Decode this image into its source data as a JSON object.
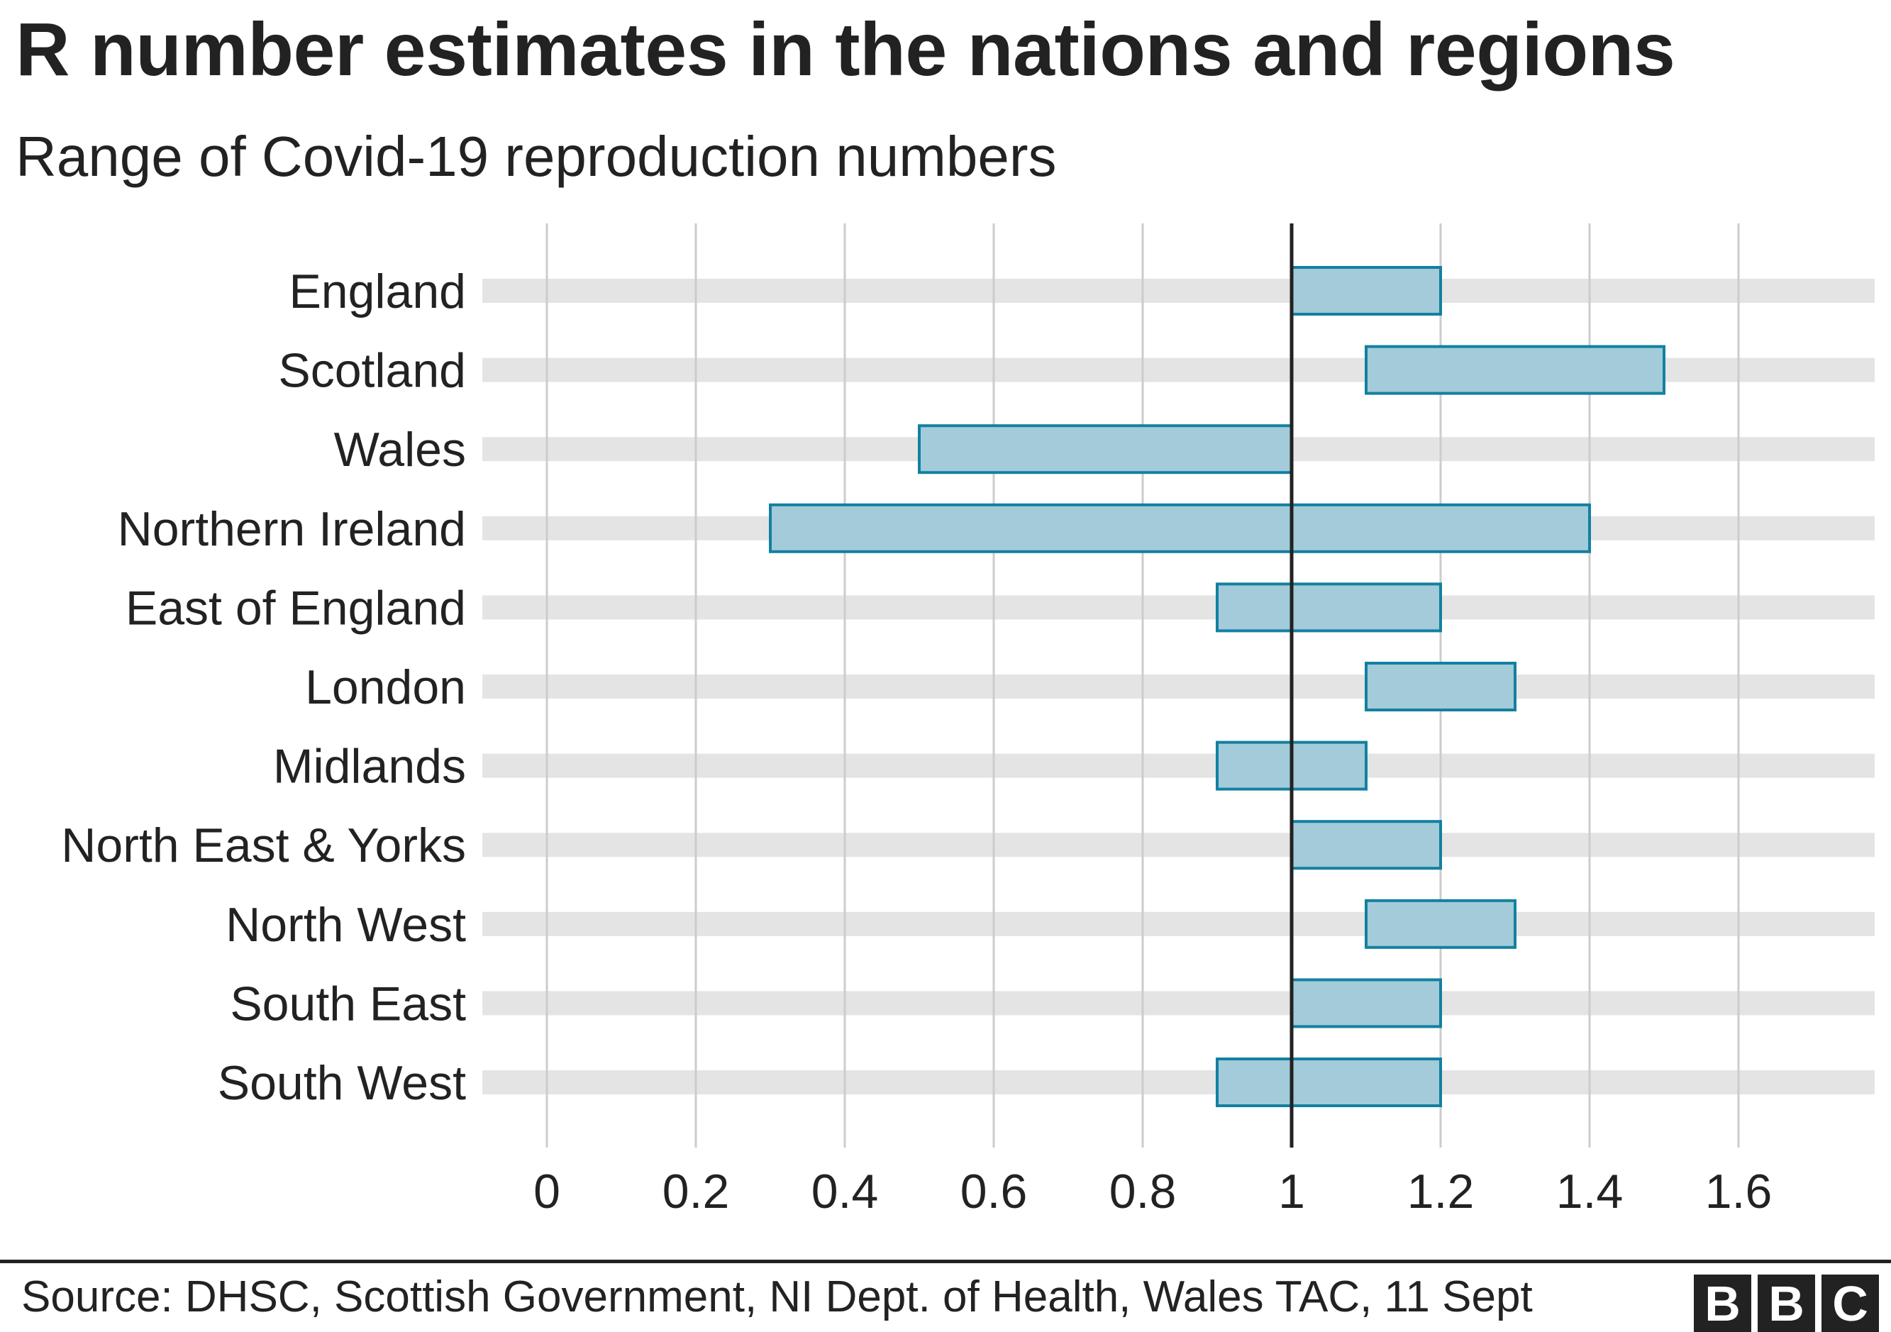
{
  "chart_data": {
    "type": "bar",
    "subtype": "range",
    "title": "R number estimates in the nations and regions",
    "subtitle": "Range of Covid-19 reproduction numbers",
    "xlabel": "",
    "ylabel": "",
    "xlim": [
      0,
      1.8
    ],
    "xticks": [
      0,
      0.2,
      0.4,
      0.6,
      0.8,
      1,
      1.2,
      1.4,
      1.6
    ],
    "xtick_labels": [
      "0",
      "0.2",
      "0.4",
      "0.6",
      "0.8",
      "1",
      "1.2",
      "1.4",
      "1.6"
    ],
    "reference_line": 1,
    "grid": true,
    "categories": [
      "England",
      "Scotland",
      "Wales",
      "Northern Ireland",
      "East of England",
      "London",
      "Midlands",
      "North East & Yorks",
      "North West",
      "South East",
      "South West"
    ],
    "ranges": [
      {
        "low": 1.0,
        "high": 1.2
      },
      {
        "low": 1.1,
        "high": 1.5
      },
      {
        "low": 0.5,
        "high": 1.0
      },
      {
        "low": 0.3,
        "high": 1.4
      },
      {
        "low": 0.9,
        "high": 1.2
      },
      {
        "low": 1.1,
        "high": 1.3
      },
      {
        "low": 0.9,
        "high": 1.1
      },
      {
        "low": 1.0,
        "high": 1.2
      },
      {
        "low": 1.1,
        "high": 1.3
      },
      {
        "low": 1.0,
        "high": 1.2
      },
      {
        "low": 0.9,
        "high": 1.2
      }
    ],
    "colors": {
      "bar_fill": "#a3cbd9",
      "bar_stroke": "#1380a1",
      "band": "#e4e4e4",
      "grid": "#cccccc",
      "reference": "#222222"
    }
  },
  "footer": {
    "source": "Source: DHSC, Scottish Government, NI Dept. of Health, Wales TAC, 11 Sept",
    "logo": [
      "B",
      "B",
      "C"
    ]
  }
}
